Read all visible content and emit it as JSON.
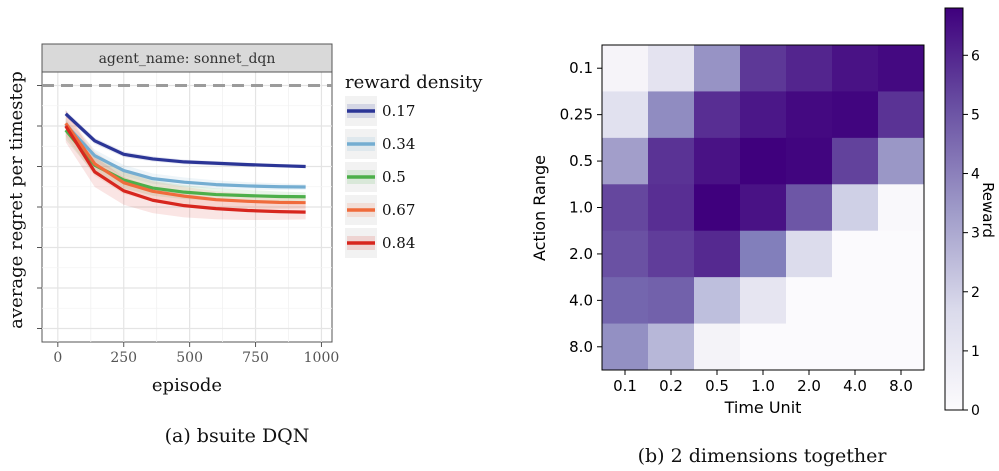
{
  "chart_data": [
    {
      "type": "line",
      "panel_label": "agent_name: sonnet_dqn",
      "caption": "(a) bsuite DQN",
      "xlabel": "episode",
      "ylabel": "average regret per timestep",
      "xlim": [
        -60,
        1040
      ],
      "ylim": [
        0,
        1
      ],
      "x_ticks": [
        0,
        250,
        500,
        750,
        1000
      ],
      "y_ticks_count": 7,
      "grid": true,
      "reference_line": 0.95,
      "legend_title": "reward density",
      "legend_position": "right",
      "x": [
        30,
        140,
        250,
        360,
        480,
        600,
        720,
        840,
        940
      ],
      "series": [
        {
          "name": "0.17",
          "color": "#2b3596",
          "values": [
            0.845,
            0.745,
            0.695,
            0.678,
            0.667,
            0.662,
            0.657,
            0.653,
            0.65
          ]
        },
        {
          "name": "0.34",
          "color": "#74add1",
          "values": [
            0.805,
            0.69,
            0.635,
            0.605,
            0.592,
            0.583,
            0.578,
            0.575,
            0.574
          ]
        },
        {
          "name": "0.5",
          "color": "#4daf4a",
          "values": [
            0.785,
            0.655,
            0.6,
            0.57,
            0.555,
            0.546,
            0.542,
            0.539,
            0.538
          ]
        },
        {
          "name": "0.67",
          "color": "#f06b3c",
          "values": [
            0.81,
            0.66,
            0.59,
            0.558,
            0.54,
            0.527,
            0.521,
            0.517,
            0.516
          ]
        },
        {
          "name": "0.84",
          "color": "#d7261e",
          "values": [
            0.8,
            0.63,
            0.56,
            0.525,
            0.505,
            0.494,
            0.487,
            0.483,
            0.481
          ]
        }
      ]
    },
    {
      "type": "heatmap",
      "caption": "(b) 2 dimensions together",
      "xlabel": "Time Unit",
      "ylabel": "Action Range",
      "x_categories": [
        "0.1",
        "0.2",
        "0.5",
        "1.0",
        "2.0",
        "4.0",
        "8.0"
      ],
      "y_categories": [
        "0.1",
        "0.25",
        "0.5",
        "1.0",
        "2.0",
        "4.0",
        "8.0"
      ],
      "values": [
        [
          0.4,
          1.3,
          3.6,
          5.6,
          6.0,
          6.4,
          6.6
        ],
        [
          1.4,
          3.8,
          5.8,
          6.3,
          6.6,
          6.7,
          5.7
        ],
        [
          3.3,
          5.7,
          6.4,
          6.8,
          6.7,
          5.4,
          3.5
        ],
        [
          5.3,
          5.8,
          6.8,
          6.4,
          5.0,
          2.0,
          0.2
        ],
        [
          5.1,
          5.5,
          5.9,
          4.2,
          1.6,
          0.05,
          0.05
        ],
        [
          4.7,
          4.8,
          2.5,
          1.2,
          0.05,
          0.05,
          0.05
        ],
        [
          3.7,
          2.7,
          0.5,
          0.05,
          0.05,
          0.05,
          0.05
        ]
      ],
      "colorbar_label": "Reward",
      "colorbar_range": [
        0,
        6.8
      ],
      "colorbar_ticks": [
        0,
        1,
        2,
        3,
        4,
        5,
        6
      ],
      "colormap": "Purples"
    }
  ]
}
